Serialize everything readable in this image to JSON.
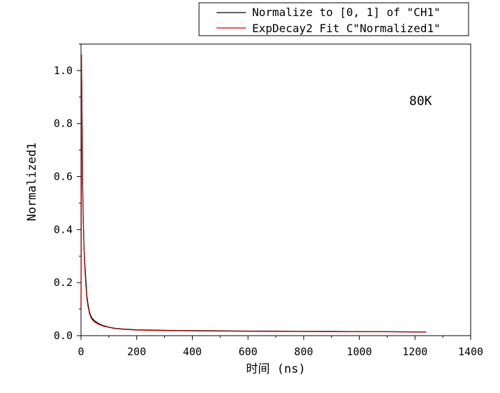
{
  "chart_data": {
    "type": "line",
    "xlabel": "时间 (ns)",
    "ylabel": "Normalized1",
    "xlim": [
      0,
      1400
    ],
    "ylim": [
      0,
      1.1
    ],
    "x_ticks": [
      0,
      200,
      400,
      600,
      800,
      1000,
      1200,
      1400
    ],
    "y_ticks": [
      0.0,
      0.2,
      0.4,
      0.6,
      0.8,
      1.0
    ],
    "x_tick_labels": [
      "0",
      "200",
      "400",
      "600",
      "800",
      "1000",
      "1200",
      "1400"
    ],
    "y_tick_labels": [
      "0.0",
      "0.2",
      "0.4",
      "0.6",
      "0.8",
      "1.0"
    ],
    "annotation": "80K",
    "legend": {
      "placement": "top-right, outside plot",
      "entries": [
        {
          "label": "Normalize to [0, 1] of \"CH1\"",
          "color": "#000000"
        },
        {
          "label": "ExpDecay2 Fit C\"Normalized1\"",
          "color": "#cc0000"
        }
      ]
    },
    "series": [
      {
        "name": "Normalize to [0, 1] of \"CH1\"",
        "color": "#000000",
        "x": [
          0,
          2,
          4,
          6,
          8,
          10,
          12,
          15,
          18,
          21,
          25,
          30,
          35,
          40,
          50,
          60,
          70,
          80,
          100,
          120,
          150,
          200,
          300,
          400,
          500,
          600,
          700,
          800,
          900,
          1000,
          1100,
          1200,
          1240
        ],
        "y": [
          0.1,
          1.0,
          0.8,
          0.55,
          0.45,
          0.36,
          0.3,
          0.25,
          0.2,
          0.15,
          0.12,
          0.09,
          0.075,
          0.065,
          0.055,
          0.048,
          0.042,
          0.038,
          0.032,
          0.028,
          0.025,
          0.022,
          0.02,
          0.019,
          0.018,
          0.017,
          0.017,
          0.016,
          0.016,
          0.015,
          0.015,
          0.014,
          0.014
        ]
      },
      {
        "name": "ExpDecay2 Fit C\"Normalized1\"",
        "color": "#cc0000",
        "x": [
          0,
          2,
          4,
          6,
          8,
          10,
          12,
          15,
          18,
          21,
          25,
          30,
          35,
          40,
          50,
          60,
          70,
          80,
          100,
          120,
          150,
          200,
          300,
          400,
          500,
          600,
          700,
          800,
          900,
          1000,
          1100,
          1200,
          1240
        ],
        "y": [
          0.1,
          1.06,
          0.78,
          0.57,
          0.44,
          0.35,
          0.29,
          0.23,
          0.18,
          0.14,
          0.11,
          0.085,
          0.07,
          0.06,
          0.05,
          0.044,
          0.04,
          0.036,
          0.031,
          0.027,
          0.024,
          0.021,
          0.019,
          0.018,
          0.017,
          0.0165,
          0.016,
          0.0155,
          0.015,
          0.015,
          0.0145,
          0.014,
          0.014
        ]
      }
    ]
  }
}
